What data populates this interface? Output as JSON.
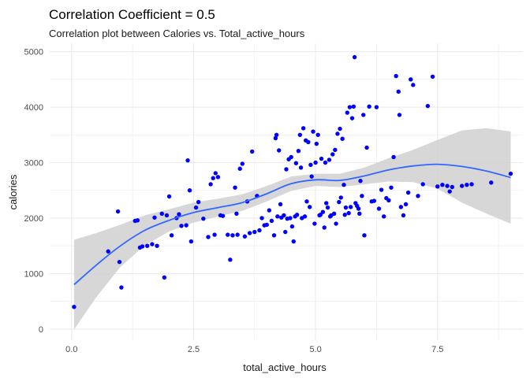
{
  "chart_data": {
    "type": "scatter",
    "title": "Correlation Coefficient = 0.5",
    "subtitle": "Correlation plot between Calories vs. Total_active_hours",
    "xlabel": "total_active_hours",
    "ylabel": "calories",
    "xlim": [
      -0.45,
      9.25
    ],
    "ylim": [
      -200,
      5150
    ],
    "x_ticks": [
      0.0,
      2.5,
      5.0,
      7.5
    ],
    "x_tick_labels": [
      "0.0",
      "2.5",
      "5.0",
      "7.5"
    ],
    "y_ticks": [
      0,
      1000,
      2000,
      3000,
      4000,
      5000
    ],
    "y_tick_labels": [
      "0",
      "1000",
      "2000",
      "3000",
      "4000",
      "5000"
    ],
    "grid": true,
    "colors": {
      "points": "#0000ff",
      "smooth_line": "#3366ff",
      "ribbon": "#d0d0d0",
      "grid": "#ebebeb"
    },
    "points": [
      [
        0.05,
        400
      ],
      [
        0.75,
        1400
      ],
      [
        0.95,
        2120
      ],
      [
        0.98,
        1210
      ],
      [
        1.02,
        750
      ],
      [
        1.3,
        1950
      ],
      [
        1.35,
        1960
      ],
      [
        1.4,
        1470
      ],
      [
        1.45,
        1490
      ],
      [
        1.55,
        1500
      ],
      [
        1.65,
        1530
      ],
      [
        1.7,
        2010
      ],
      [
        1.75,
        1500
      ],
      [
        1.85,
        2080
      ],
      [
        1.9,
        930
      ],
      [
        1.95,
        2050
      ],
      [
        2.0,
        2390
      ],
      [
        2.05,
        1690
      ],
      [
        2.15,
        2000
      ],
      [
        2.2,
        2070
      ],
      [
        2.25,
        1860
      ],
      [
        2.35,
        1870
      ],
      [
        2.38,
        3040
      ],
      [
        2.42,
        2500
      ],
      [
        2.45,
        1580
      ],
      [
        2.55,
        2190
      ],
      [
        2.6,
        2290
      ],
      [
        2.7,
        1990
      ],
      [
        2.8,
        1660
      ],
      [
        2.85,
        2610
      ],
      [
        2.9,
        2720
      ],
      [
        2.93,
        1700
      ],
      [
        2.95,
        2810
      ],
      [
        3.0,
        2740
      ],
      [
        3.05,
        2050
      ],
      [
        3.1,
        2040
      ],
      [
        3.2,
        1700
      ],
      [
        3.25,
        1250
      ],
      [
        3.3,
        1690
      ],
      [
        3.35,
        2550
      ],
      [
        3.38,
        2080
      ],
      [
        3.4,
        1700
      ],
      [
        3.45,
        2890
      ],
      [
        3.5,
        2980
      ],
      [
        3.55,
        1670
      ],
      [
        3.6,
        2300
      ],
      [
        3.65,
        1730
      ],
      [
        3.7,
        3200
      ],
      [
        3.75,
        1750
      ],
      [
        3.8,
        2400
      ],
      [
        3.85,
        1780
      ],
      [
        3.9,
        2000
      ],
      [
        3.95,
        1870
      ],
      [
        4.0,
        1880
      ],
      [
        4.05,
        2140
      ],
      [
        4.1,
        1950
      ],
      [
        4.15,
        1690
      ],
      [
        4.18,
        3440
      ],
      [
        4.2,
        3500
      ],
      [
        4.22,
        2030
      ],
      [
        4.25,
        3220
      ],
      [
        4.28,
        2250
      ],
      [
        4.3,
        2010
      ],
      [
        4.35,
        2050
      ],
      [
        4.38,
        1750
      ],
      [
        4.4,
        2880
      ],
      [
        4.42,
        1990
      ],
      [
        4.45,
        3060
      ],
      [
        4.48,
        2000
      ],
      [
        4.5,
        3100
      ],
      [
        4.52,
        1850
      ],
      [
        4.55,
        1580
      ],
      [
        4.58,
        2030
      ],
      [
        4.6,
        2990
      ],
      [
        4.62,
        2060
      ],
      [
        4.65,
        3210
      ],
      [
        4.68,
        3500
      ],
      [
        4.7,
        2910
      ],
      [
        4.72,
        2000
      ],
      [
        4.75,
        3620
      ],
      [
        4.78,
        2030
      ],
      [
        4.8,
        3400
      ],
      [
        4.82,
        2300
      ],
      [
        4.85,
        3370
      ],
      [
        4.88,
        2200
      ],
      [
        4.9,
        2960
      ],
      [
        4.92,
        2750
      ],
      [
        4.95,
        3560
      ],
      [
        4.98,
        1900
      ],
      [
        5.0,
        3000
      ],
      [
        5.02,
        3340
      ],
      [
        5.05,
        3500
      ],
      [
        5.08,
        2050
      ],
      [
        5.1,
        2060
      ],
      [
        5.12,
        3070
      ],
      [
        5.15,
        2110
      ],
      [
        5.18,
        1830
      ],
      [
        5.2,
        3000
      ],
      [
        5.22,
        2270
      ],
      [
        5.25,
        2190
      ],
      [
        5.28,
        3050
      ],
      [
        5.3,
        2030
      ],
      [
        5.32,
        2050
      ],
      [
        5.35,
        3150
      ],
      [
        5.38,
        2080
      ],
      [
        5.4,
        3230
      ],
      [
        5.42,
        1900
      ],
      [
        5.45,
        3520
      ],
      [
        5.48,
        2290
      ],
      [
        5.5,
        3610
      ],
      [
        5.52,
        2370
      ],
      [
        5.55,
        3430
      ],
      [
        5.58,
        2600
      ],
      [
        5.6,
        2060
      ],
      [
        5.62,
        2190
      ],
      [
        5.65,
        3900
      ],
      [
        5.68,
        2090
      ],
      [
        5.7,
        4000
      ],
      [
        5.72,
        2200
      ],
      [
        5.75,
        3800
      ],
      [
        5.78,
        4010
      ],
      [
        5.8,
        4900
      ],
      [
        5.82,
        2270
      ],
      [
        5.85,
        2220
      ],
      [
        5.88,
        2170
      ],
      [
        5.9,
        2080
      ],
      [
        5.92,
        2670
      ],
      [
        5.95,
        2400
      ],
      [
        5.98,
        3860
      ],
      [
        6.0,
        1690
      ],
      [
        6.05,
        3270
      ],
      [
        6.1,
        4010
      ],
      [
        6.15,
        2300
      ],
      [
        6.2,
        2310
      ],
      [
        6.25,
        4000
      ],
      [
        6.3,
        2170
      ],
      [
        6.35,
        2510
      ],
      [
        6.4,
        2030
      ],
      [
        6.45,
        2360
      ],
      [
        6.5,
        2320
      ],
      [
        6.55,
        2550
      ],
      [
        6.6,
        3100
      ],
      [
        6.65,
        4560
      ],
      [
        6.7,
        4280
      ],
      [
        6.72,
        3860
      ],
      [
        6.75,
        2200
      ],
      [
        6.8,
        2050
      ],
      [
        6.85,
        2250
      ],
      [
        6.9,
        2460
      ],
      [
        6.95,
        4500
      ],
      [
        7.0,
        4400
      ],
      [
        7.1,
        2400
      ],
      [
        7.2,
        2610
      ],
      [
        7.3,
        4020
      ],
      [
        7.4,
        4550
      ],
      [
        7.5,
        2570
      ],
      [
        7.6,
        2600
      ],
      [
        7.7,
        2580
      ],
      [
        7.75,
        2480
      ],
      [
        7.8,
        2560
      ],
      [
        8.0,
        2580
      ],
      [
        8.1,
        2600
      ],
      [
        8.2,
        2610
      ],
      [
        8.6,
        2640
      ],
      [
        9.0,
        2800
      ]
    ],
    "smooth": {
      "x": [
        0.05,
        0.5,
        1.0,
        1.5,
        2.0,
        2.5,
        3.0,
        3.5,
        4.0,
        4.5,
        5.0,
        5.5,
        6.0,
        6.5,
        7.0,
        7.5,
        8.0,
        8.5,
        9.0
      ],
      "y": [
        800,
        1150,
        1500,
        1780,
        1960,
        2100,
        2190,
        2280,
        2440,
        2620,
        2690,
        2680,
        2760,
        2870,
        2940,
        2970,
        2930,
        2850,
        2730
      ],
      "lower": [
        -10,
        570,
        1120,
        1510,
        1760,
        1920,
        2030,
        2130,
        2300,
        2490,
        2580,
        2560,
        2610,
        2660,
        2650,
        2530,
        2280,
        2080,
        1900
      ],
      "upper": [
        1610,
        1730,
        1880,
        2050,
        2160,
        2280,
        2350,
        2430,
        2580,
        2750,
        2800,
        2800,
        2910,
        3080,
        3230,
        3410,
        3580,
        3620,
        3560
      ]
    }
  }
}
